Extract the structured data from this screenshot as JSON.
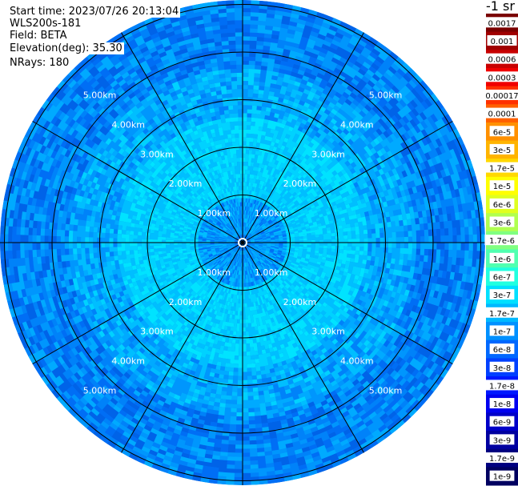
{
  "info": {
    "start_time": "Start time: 2023/07/26 20:13:04",
    "station": "WLS200s-181",
    "field": "Field: BETA",
    "elevation": "Elevation(deg): 35.30",
    "nrays": "NRays: 180"
  },
  "chart_data": {
    "type": "heatmap",
    "projection": "polar",
    "field": "BETA",
    "rays": 180,
    "range_rings_km": [
      1,
      2,
      3,
      4,
      5
    ],
    "range_labels": [
      "1.00km",
      "2.00km",
      "3.00km",
      "4.00km",
      "5.00km"
    ],
    "spokes": 12,
    "colorbar": {
      "unit_label": "-1 sr",
      "labels": [
        "0.0017",
        "0.001",
        "0.0006",
        "0.0003",
        "0.00017",
        "0.0001",
        "6e-5",
        "3e-5",
        "1.7e-5",
        "1e-5",
        "6e-6",
        "3e-6",
        "1.7e-6",
        "1e-6",
        "6e-7",
        "3e-7",
        "1.7e-7",
        "1e-7",
        "6e-8",
        "3e-8",
        "1.7e-8",
        "1e-8",
        "6e-9",
        "3e-9",
        "1.7e-9",
        "1e-9"
      ],
      "colors": [
        "#7a0000",
        "#a00000",
        "#c80000",
        "#f00000",
        "#ff3000",
        "#ff6000",
        "#ff9000",
        "#ffb400",
        "#ffd800",
        "#ffff00",
        "#e0ff20",
        "#b0ff50",
        "#80ff80",
        "#50ffb0",
        "#20ffe0",
        "#00e0ff",
        "#00b8ff",
        "#0090ff",
        "#0068ff",
        "#0040ff",
        "#0018ff",
        "#0000f0",
        "#0000c8",
        "#0000a0",
        "#000080",
        "#000060"
      ]
    }
  }
}
